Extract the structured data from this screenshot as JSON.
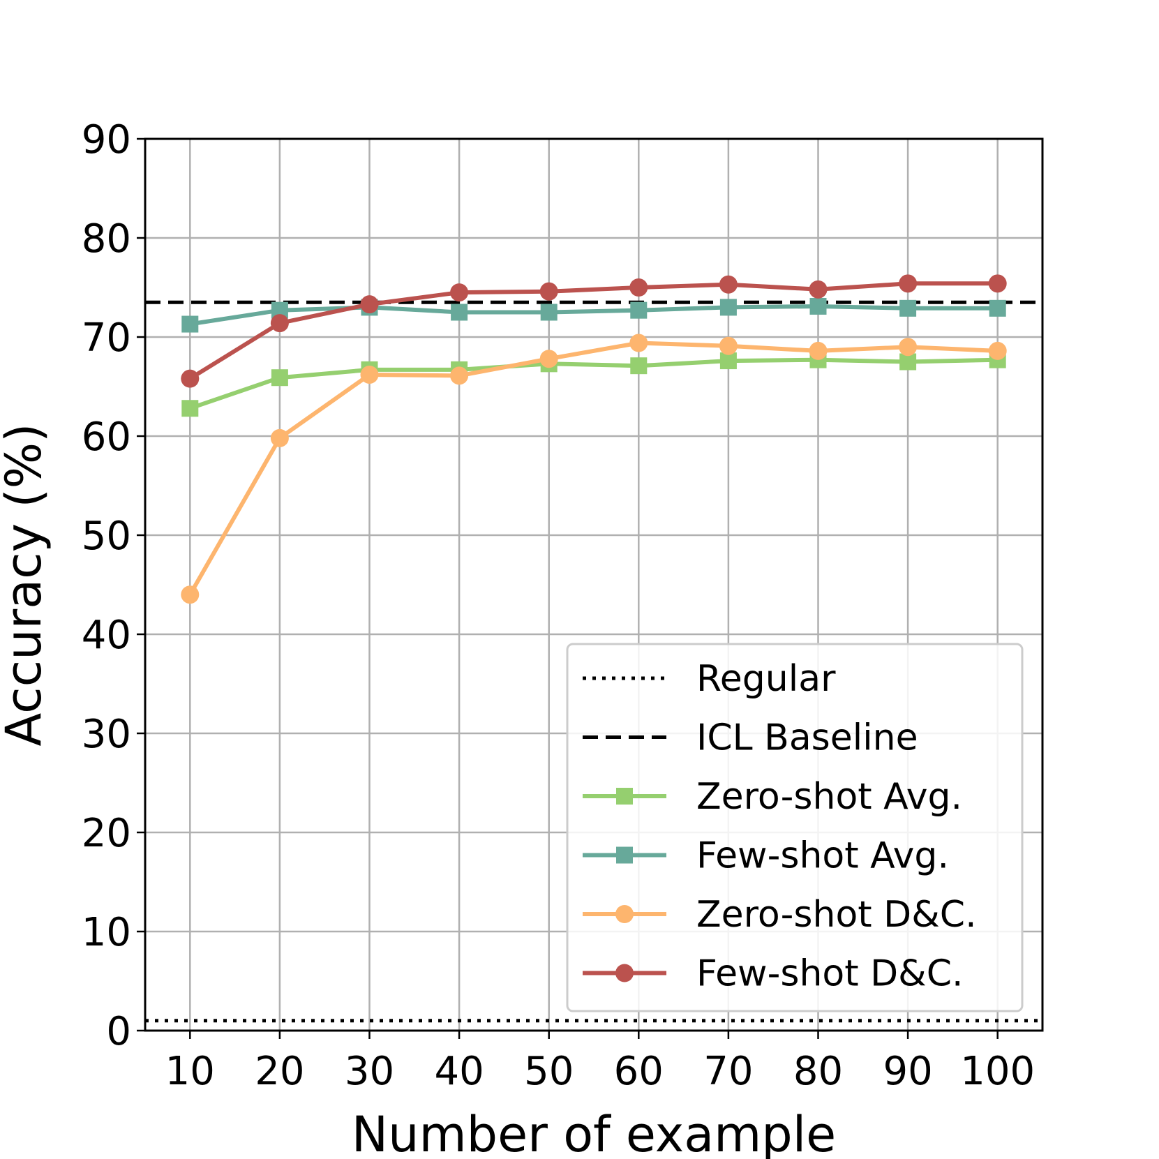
{
  "chart_data": {
    "type": "line",
    "title": "",
    "xlabel": "Number of example",
    "ylabel": "Accuracy (%)",
    "x": [
      10,
      20,
      30,
      40,
      50,
      60,
      70,
      80,
      90,
      100
    ],
    "x_ticks": [
      "10",
      "20",
      "30",
      "40",
      "50",
      "60",
      "70",
      "80",
      "90",
      "100"
    ],
    "xlim": [
      5,
      105
    ],
    "ylim": [
      0,
      90
    ],
    "y_ticks": [
      "0",
      "10",
      "20",
      "30",
      "40",
      "50",
      "60",
      "70",
      "80",
      "90"
    ],
    "grid": true,
    "legend_position": "bottom-right",
    "reference_lines": [
      {
        "name": "Regular",
        "value": 1.0,
        "style": "dotted",
        "color": "#000000"
      },
      {
        "name": "ICL Baseline",
        "value": 73.5,
        "style": "dashed",
        "color": "#000000"
      }
    ],
    "series": [
      {
        "name": "Zero-shot Avg.",
        "marker": "square",
        "color": "#95cf6f",
        "values": [
          62.8,
          65.9,
          66.7,
          66.7,
          67.3,
          67.1,
          67.6,
          67.7,
          67.5,
          67.7
        ]
      },
      {
        "name": "Few-shot Avg.",
        "marker": "square",
        "color": "#67a99a",
        "values": [
          71.3,
          72.7,
          73.0,
          72.5,
          72.5,
          72.7,
          73.0,
          73.1,
          72.9,
          72.9
        ]
      },
      {
        "name": "Zero-shot D&C.",
        "marker": "circle",
        "color": "#fdb56e",
        "values": [
          44.0,
          59.8,
          66.2,
          66.1,
          67.8,
          69.4,
          69.1,
          68.6,
          69.0,
          68.6
        ]
      },
      {
        "name": "Few-shot D&C.",
        "marker": "circle",
        "color": "#bb524e",
        "values": [
          65.8,
          71.4,
          73.3,
          74.5,
          74.6,
          75.0,
          75.3,
          74.8,
          75.4,
          75.4
        ]
      }
    ]
  }
}
